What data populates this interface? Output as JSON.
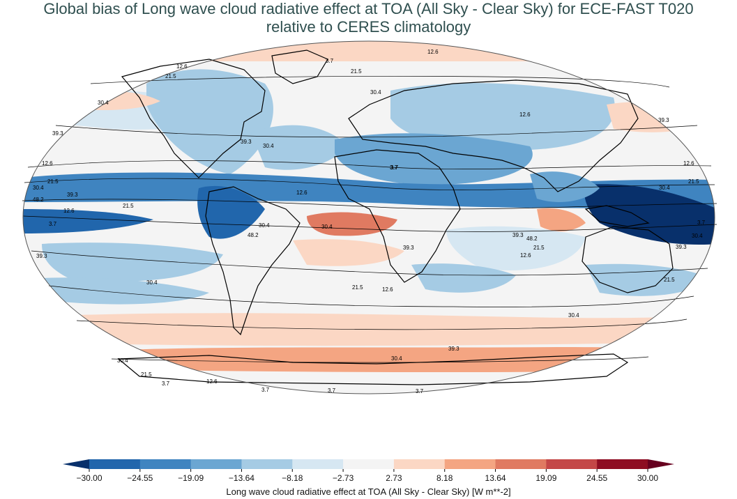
{
  "title": {
    "line1": "Global bias of Long wave cloud radiative effect at TOA (All Sky - Clear Sky) for ECE-FAST T020",
    "line2": "relative to CERES climatology"
  },
  "colorbar": {
    "label": "Long wave cloud radiative effect at TOA (All Sky - Clear Sky) [W m**-2]",
    "ticks": [
      "−30.00",
      "−24.55",
      "−19.09",
      "−13.64",
      "−8.18",
      "−2.73",
      "2.73",
      "8.18",
      "13.64",
      "19.09",
      "24.55",
      "30.00"
    ],
    "colors": [
      "#08306b",
      "#2166ac",
      "#3f84c0",
      "#6ba6d2",
      "#a5cbe4",
      "#d6e7f2",
      "#f4f4f4",
      "#fbd7c4",
      "#f4a582",
      "#e07a61",
      "#c44747",
      "#8e0d22",
      "#67001f"
    ]
  },
  "contour_labels": [
    "12.6",
    "3.7",
    "21.5",
    "12.6",
    "21.5",
    "30.4",
    "39.3",
    "30.4",
    "12.6",
    "12.6",
    "21.5",
    "30.4",
    "48.2",
    "39.3",
    "12.6",
    "21.5",
    "3.7",
    "30.4",
    "48.2",
    "39.3",
    "39.3",
    "30.4",
    "30.4",
    "12.6",
    "3.7",
    "21.5",
    "12.6",
    "39.3",
    "30.4",
    "30.4",
    "21.5",
    "3.7",
    "12.6",
    "3.7",
    "3.7",
    "3.7",
    "39.3",
    "30.4",
    "30.4",
    "21.5",
    "12.6",
    "21.5",
    "48.2",
    "39.3",
    "12.6",
    "3.7",
    "30.4",
    "39.3",
    "21.5",
    "3.7",
    "30.4",
    "39.3"
  ]
}
